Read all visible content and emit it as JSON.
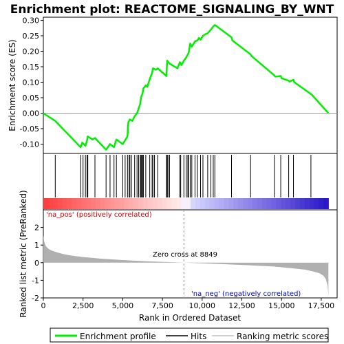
{
  "chart_data": {
    "type": "line",
    "title": "Enrichment plot: REACTOME_SIGNALING_BY_WNT",
    "es_panel": {
      "ylabel": "Enrichment score (ES)",
      "ylim": [
        -0.13,
        0.31
      ],
      "yticks": [
        -0.1,
        -0.05,
        0.0,
        0.05,
        0.1,
        0.15,
        0.2,
        0.25,
        0.3
      ],
      "ytick_labels": [
        "-0.10",
        "-0.05",
        "0.00",
        "0.05",
        "0.10",
        "0.15",
        "0.20",
        "0.25",
        "0.30"
      ],
      "series": [
        {
          "name": "Enrichment profile",
          "color": "#00ee00",
          "x": [
            0,
            750,
            2350,
            2450,
            2650,
            2750,
            2800,
            3100,
            3250,
            3950,
            4200,
            4450,
            4600,
            5000,
            5300,
            5350,
            5450,
            5600,
            5750,
            5900,
            6100,
            6150,
            6250,
            6300,
            6450,
            6550,
            6700,
            6850,
            6900,
            7100,
            7200,
            7750,
            7800,
            7950,
            8450,
            8600,
            8700,
            8850,
            9000,
            9150,
            9250,
            9350,
            9550,
            9700,
            9800,
            9900,
            10050,
            10200,
            10350,
            10550,
            10700,
            10800,
            11850,
            11900,
            13050,
            13100,
            14550,
            14600,
            14950,
            15000,
            15450,
            15500,
            15750,
            15800,
            16850,
            16900,
            17950
          ],
          "y": [
            0.0,
            -0.025,
            -0.11,
            -0.095,
            -0.105,
            -0.088,
            -0.075,
            -0.085,
            -0.08,
            -0.118,
            -0.1,
            -0.11,
            -0.085,
            -0.1,
            -0.075,
            -0.03,
            -0.02,
            -0.025,
            -0.01,
            0.0,
            0.03,
            0.05,
            0.065,
            0.08,
            0.09,
            0.085,
            0.11,
            0.13,
            0.145,
            0.14,
            0.145,
            0.12,
            0.17,
            0.16,
            0.145,
            0.165,
            0.155,
            0.17,
            0.18,
            0.195,
            0.225,
            0.215,
            0.232,
            0.235,
            0.243,
            0.237,
            0.25,
            0.255,
            0.258,
            0.27,
            0.28,
            0.285,
            0.245,
            0.235,
            0.19,
            0.185,
            0.122,
            0.118,
            0.12,
            0.113,
            0.105,
            0.102,
            0.108,
            0.1,
            0.062,
            0.06,
            0.0
          ]
        }
      ]
    },
    "hits": [
      750,
      2350,
      2500,
      2650,
      2750,
      2800,
      3250,
      3950,
      4200,
      4450,
      4600,
      5000,
      5150,
      5300,
      5400,
      5450,
      5550,
      5750,
      5900,
      6000,
      6100,
      6150,
      6200,
      6250,
      6300,
      6450,
      6700,
      6850,
      6900,
      7000,
      7200,
      7750,
      7800,
      7850,
      7950,
      8600,
      8650,
      8850,
      9000,
      9100,
      9150,
      9250,
      9350,
      9550,
      9700,
      9900,
      10050,
      10350,
      10550,
      10700,
      10800,
      11850,
      13050,
      14550,
      14950,
      15450,
      15750,
      16850
    ],
    "ranked_panel": {
      "ylabel": "Ranked list metric (PreRanked)",
      "ylim": [
        -2.0,
        3.0
      ],
      "yticks": [
        -2,
        -1,
        0,
        1,
        2
      ],
      "ytick_labels": [
        "-2",
        "-1",
        "0",
        "1",
        "2"
      ],
      "metric": {
        "x": [
          0,
          50,
          150,
          300,
          500,
          800,
          1200,
          1800,
          2500,
          3500,
          5000,
          6500,
          8000,
          8849,
          10000,
          11500,
          13000,
          14500,
          15500,
          16500,
          17000,
          17400,
          17650,
          17800,
          17900,
          17950
        ],
        "y": [
          1.55,
          1.2,
          0.95,
          0.8,
          0.7,
          0.6,
          0.5,
          0.4,
          0.32,
          0.24,
          0.15,
          0.08,
          0.03,
          0.0,
          -0.04,
          -0.09,
          -0.15,
          -0.22,
          -0.3,
          -0.4,
          -0.5,
          -0.6,
          -0.75,
          -0.95,
          -1.3,
          -1.9
        ]
      },
      "zero_cross_label": "Zero cross at 8849",
      "zero_cross": 8849,
      "pos_label": "'na_pos' (positively correlated)",
      "neg_label": "'na_neg' (negatively correlated)"
    },
    "xlabel": "Rank in Ordered Dataset",
    "xlim": [
      0,
      18500
    ],
    "xticks": [
      0,
      2500,
      5000,
      7500,
      10000,
      12500,
      15000,
      17500
    ],
    "xtick_labels": [
      "0",
      "2,500",
      "5,000",
      "7,500",
      "10,000",
      "12,500",
      "15,000",
      "17,500"
    ],
    "list_size": 17950,
    "legend": {
      "placement": "bottom",
      "items": [
        {
          "label": "Enrichment profile",
          "color": "#00ee00"
        },
        {
          "label": "Hits",
          "color": "#000000"
        },
        {
          "label": "Ranking metric scores",
          "color": "#c0c0c0"
        }
      ]
    },
    "colors": {
      "pos_text": "#cc0000",
      "neg_text": "#0000cc",
      "metric_fill": "#b0b0b0"
    }
  }
}
